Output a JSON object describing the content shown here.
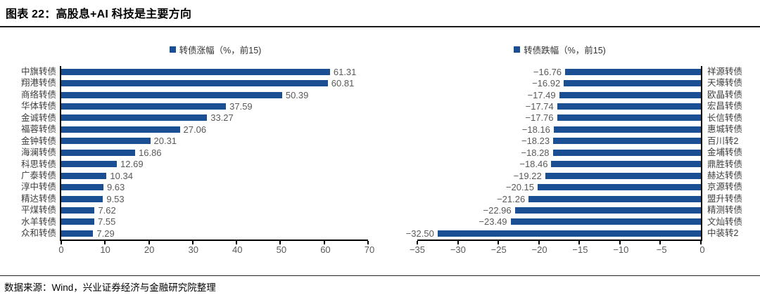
{
  "title": "图表 22：高股息+AI 科技是主要方向",
  "footer": "数据来源：Wind，兴业证券经济与金融研究院整理",
  "colors": {
    "bar": "#1B4F94",
    "value_label": "#595959",
    "axis": "#000000"
  },
  "chart_data": [
    {
      "type": "bar",
      "orientation": "horizontal",
      "legend": "转债涨幅（%，前15)",
      "legend_position": "top-center",
      "grid": false,
      "categories": [
        "中旗转债",
        "翔港转债",
        "商络转债",
        "华体转债",
        "金诚转债",
        "福蓉转债",
        "金钟转债",
        "海澜转债",
        "科思转债",
        "广泰转债",
        "淳中转债",
        "精达转债",
        "平煤转债",
        "水羊转债",
        "众和转债"
      ],
      "values": [
        61.31,
        60.81,
        50.39,
        37.59,
        33.27,
        27.06,
        20.31,
        16.86,
        12.69,
        10.34,
        9.63,
        9.53,
        7.62,
        7.55,
        7.29
      ],
      "xlim": [
        0,
        70
      ],
      "xticks": [
        0,
        10,
        20,
        30,
        40,
        50,
        60,
        70
      ],
      "xlabel": "",
      "ylabel": ""
    },
    {
      "type": "bar",
      "orientation": "horizontal",
      "legend": "转债跌幅（%，前15)",
      "legend_position": "top-center",
      "grid": false,
      "categories": [
        "祥源转债",
        "天壕转债",
        "欧晶转债",
        "宏昌转债",
        "长信转债",
        "惠城转债",
        "百川转2",
        "金埔转债",
        "鼎胜转债",
        "赫达转债",
        "京源转债",
        "盟升转债",
        "精测转债",
        "文灿转债",
        "中装转2"
      ],
      "values": [
        -16.76,
        -16.92,
        -17.49,
        -17.74,
        -17.76,
        -18.16,
        -18.23,
        -18.28,
        -18.46,
        -19.22,
        -20.15,
        -21.26,
        -22.96,
        -23.49,
        -32.5
      ],
      "xlim": [
        -35,
        0
      ],
      "xticks": [
        -35,
        -30,
        -25,
        -20,
        -15,
        -10,
        -5,
        0
      ],
      "xlabel": "",
      "ylabel": ""
    }
  ]
}
